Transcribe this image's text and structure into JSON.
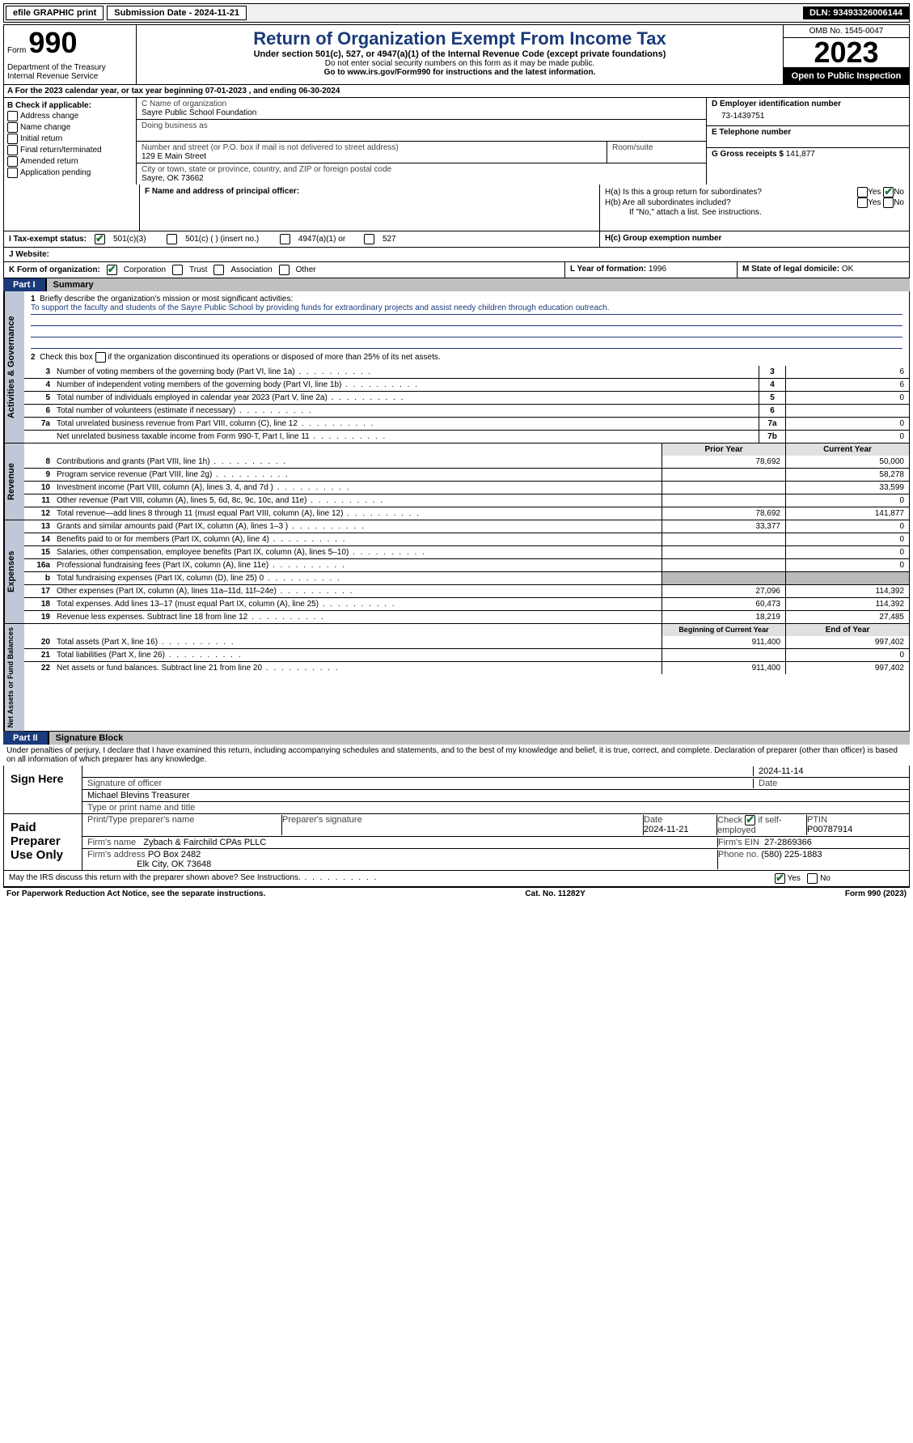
{
  "topbar": {
    "efile": "efile GRAPHIC print",
    "sub_label": "Submission Date - 2024-11-21",
    "dln": "DLN: 93493326006144"
  },
  "header": {
    "form_word": "Form",
    "form_num": "990",
    "dept": "Department of the Treasury",
    "irs": "Internal Revenue Service",
    "title": "Return of Organization Exempt From Income Tax",
    "sub": "Under section 501(c), 527, or 4947(a)(1) of the Internal Revenue Code (except private foundations)",
    "sub2": "Do not enter social security numbers on this form as it may be made public.",
    "link": "Go to www.irs.gov/Form990 for instructions and the latest information.",
    "omb": "OMB No. 1545-0047",
    "year": "2023",
    "inspection": "Open to Public Inspection"
  },
  "row_a": "A For the 2023 calendar year, or tax year beginning 07-01-2023   , and ending 06-30-2024",
  "b": {
    "label": "B Check if applicable:",
    "opts": [
      "Address change",
      "Name change",
      "Initial return",
      "Final return/terminated",
      "Amended return",
      "Application pending"
    ]
  },
  "c": {
    "name_lbl": "C Name of organization",
    "name": "Sayre Public School Foundation",
    "dba_lbl": "Doing business as",
    "addr_lbl": "Number and street (or P.O. box if mail is not delivered to street address)",
    "addr": "129 E Main Street",
    "room_lbl": "Room/suite",
    "city_lbl": "City or town, state or province, country, and ZIP or foreign postal code",
    "city": "Sayre, OK  73662"
  },
  "d": {
    "ein_lbl": "D Employer identification number",
    "ein": "73-1439751",
    "tel_lbl": "E Telephone number",
    "gross_lbl": "G Gross receipts $",
    "gross": "141,877"
  },
  "f": {
    "lbl": "F  Name and address of principal officer:"
  },
  "h": {
    "a": "H(a)  Is this a group return for subordinates?",
    "b": "H(b)  Are all subordinates included?",
    "note": "If \"No,\" attach a list. See instructions.",
    "c": "H(c)  Group exemption number "
  },
  "i": {
    "lbl": "I   Tax-exempt status:",
    "o1": "501(c)(3)",
    "o2": "501(c) (  ) (insert no.)",
    "o3": "4947(a)(1) or",
    "o4": "527"
  },
  "j": "J   Website: ",
  "k": {
    "lbl": "K Form of organization:",
    "o1": "Corporation",
    "o2": "Trust",
    "o3": "Association",
    "o4": "Other"
  },
  "l": {
    "lbl": "L Year of formation:",
    "val": "1996"
  },
  "m": {
    "lbl": "M State of legal domicile:",
    "val": "OK"
  },
  "part1": {
    "num": "Part I",
    "title": "Summary"
  },
  "summary": {
    "q1": "Briefly describe the organization's mission or most significant activities:",
    "mission": "To support the faculty and students of the Sayre Public School by providing funds for extraordinary projects and assist needy children through education outreach.",
    "q2": "Check this box       if the organization discontinued its operations or disposed of more than 25% of its net assets.",
    "rows_gov": [
      {
        "n": "3",
        "t": "Number of voting members of the governing body (Part VI, line 1a)",
        "c": "3",
        "v": "6"
      },
      {
        "n": "4",
        "t": "Number of independent voting members of the governing body (Part VI, line 1b)",
        "c": "4",
        "v": "6"
      },
      {
        "n": "5",
        "t": "Total number of individuals employed in calendar year 2023 (Part V, line 2a)",
        "c": "5",
        "v": "0"
      },
      {
        "n": "6",
        "t": "Total number of volunteers (estimate if necessary)",
        "c": "6",
        "v": ""
      },
      {
        "n": "7a",
        "t": "Total unrelated business revenue from Part VIII, column (C), line 12",
        "c": "7a",
        "v": "0"
      },
      {
        "n": "",
        "t": "Net unrelated business taxable income from Form 990-T, Part I, line 11",
        "c": "7b",
        "v": "0"
      }
    ],
    "col_prior": "Prior Year",
    "col_curr": "Current Year",
    "rows_rev": [
      {
        "n": "8",
        "t": "Contributions and grants (Part VIII, line 1h)",
        "p": "78,692",
        "c": "50,000"
      },
      {
        "n": "9",
        "t": "Program service revenue (Part VIII, line 2g)",
        "p": "",
        "c": "58,278"
      },
      {
        "n": "10",
        "t": "Investment income (Part VIII, column (A), lines 3, 4, and 7d )",
        "p": "",
        "c": "33,599"
      },
      {
        "n": "11",
        "t": "Other revenue (Part VIII, column (A), lines 5, 6d, 8c, 9c, 10c, and 11e)",
        "p": "",
        "c": "0"
      },
      {
        "n": "12",
        "t": "Total revenue—add lines 8 through 11 (must equal Part VIII, column (A), line 12)",
        "p": "78,692",
        "c": "141,877"
      }
    ],
    "rows_exp": [
      {
        "n": "13",
        "t": "Grants and similar amounts paid (Part IX, column (A), lines 1–3 )",
        "p": "33,377",
        "c": "0"
      },
      {
        "n": "14",
        "t": "Benefits paid to or for members (Part IX, column (A), line 4)",
        "p": "",
        "c": "0"
      },
      {
        "n": "15",
        "t": "Salaries, other compensation, employee benefits (Part IX, column (A), lines 5–10)",
        "p": "",
        "c": "0"
      },
      {
        "n": "16a",
        "t": "Professional fundraising fees (Part IX, column (A), line 11e)",
        "p": "",
        "c": "0"
      },
      {
        "n": "b",
        "t": "Total fundraising expenses (Part IX, column (D), line 25) 0",
        "p": "shade",
        "c": "shade"
      },
      {
        "n": "17",
        "t": "Other expenses (Part IX, column (A), lines 11a–11d, 11f–24e)",
        "p": "27,096",
        "c": "114,392"
      },
      {
        "n": "18",
        "t": "Total expenses. Add lines 13–17 (must equal Part IX, column (A), line 25)",
        "p": "60,473",
        "c": "114,392"
      },
      {
        "n": "19",
        "t": "Revenue less expenses. Subtract line 18 from line 12",
        "p": "18,219",
        "c": "27,485"
      }
    ],
    "col_beg": "Beginning of Current Year",
    "col_end": "End of Year",
    "rows_net": [
      {
        "n": "20",
        "t": "Total assets (Part X, line 16)",
        "p": "911,400",
        "c": "997,402"
      },
      {
        "n": "21",
        "t": "Total liabilities (Part X, line 26)",
        "p": "",
        "c": "0"
      },
      {
        "n": "22",
        "t": "Net assets or fund balances. Subtract line 21 from line 20",
        "p": "911,400",
        "c": "997,402"
      }
    ]
  },
  "vert": {
    "gov": "Activities & Governance",
    "rev": "Revenue",
    "exp": "Expenses",
    "net": "Net Assets or Fund Balances"
  },
  "part2": {
    "num": "Part II",
    "title": "Signature Block"
  },
  "perjury": "Under penalties of perjury, I declare that I have examined this return, including accompanying schedules and statements, and to the best of my knowledge and belief, it is true, correct, and complete. Declaration of preparer (other than officer) is based on all information of which preparer has any knowledge.",
  "sign": {
    "here": "Sign Here",
    "sig_lbl": "Signature of officer",
    "name": "Michael Blevins  Treasurer",
    "type_lbl": "Type or print name and title",
    "date_lbl": "Date",
    "date": "2024-11-14"
  },
  "paid": {
    "lbl": "Paid Preparer Use Only",
    "name_lbl": "Print/Type preparer's name",
    "sig_lbl": "Preparer's signature",
    "date_lbl": "Date",
    "date": "2024-11-21",
    "check_lbl": "Check",
    "check_if": "if self-employed",
    "ptin_lbl": "PTIN",
    "ptin": "P00787914",
    "firm_lbl": "Firm's name",
    "firm": "Zybach & Fairchild CPAs PLLC",
    "ein_lbl": "Firm's EIN",
    "ein": "27-2869366",
    "addr_lbl": "Firm's address",
    "addr1": "PO Box 2482",
    "addr2": "Elk City, OK  73648",
    "phone_lbl": "Phone no.",
    "phone": "(580) 225-1883"
  },
  "discuss": "May the IRS discuss this return with the preparer shown above? See Instructions.",
  "footer": {
    "l": "For Paperwork Reduction Act Notice, see the separate instructions.",
    "m": "Cat. No. 11282Y",
    "r": "Form 990 (2023)"
  },
  "yn": {
    "yes": "Yes",
    "no": "No"
  }
}
